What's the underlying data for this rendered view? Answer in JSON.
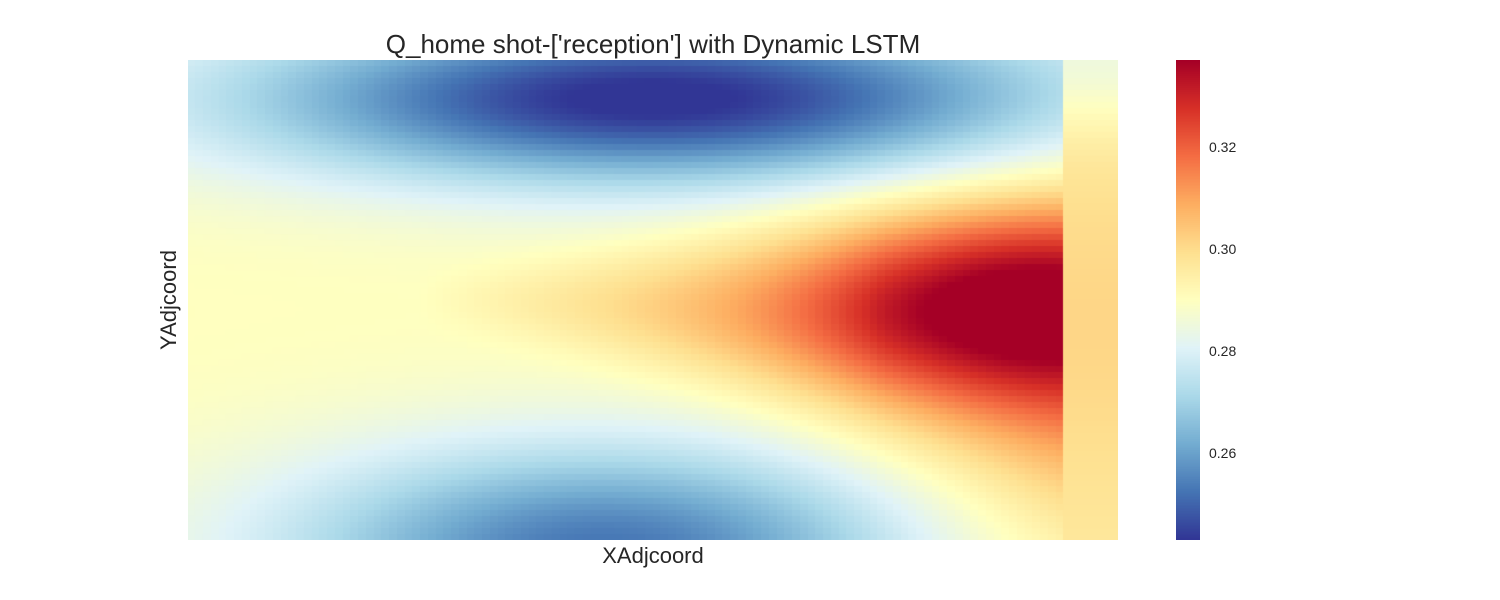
{
  "chart_data": {
    "type": "heatmap",
    "title": "Q_home shot-['reception'] with Dynamic LSTM",
    "xlabel": "XAdjcoord",
    "ylabel": "YAdjcoord",
    "colormap": "RdYlBu_r",
    "color_range": [
      0.243,
      0.337
    ],
    "colorbar_ticks": [
      0.26,
      0.28,
      0.3,
      0.32
    ],
    "colorbar_tick_labels": [
      "0.26",
      "0.28",
      "0.30",
      "0.32"
    ],
    "colors": {
      "high": "#a50026",
      "mid": "#ffffbf",
      "low": "#313695"
    },
    "x_ticks_shown": false,
    "y_ticks_shown": false,
    "grid": false
  }
}
